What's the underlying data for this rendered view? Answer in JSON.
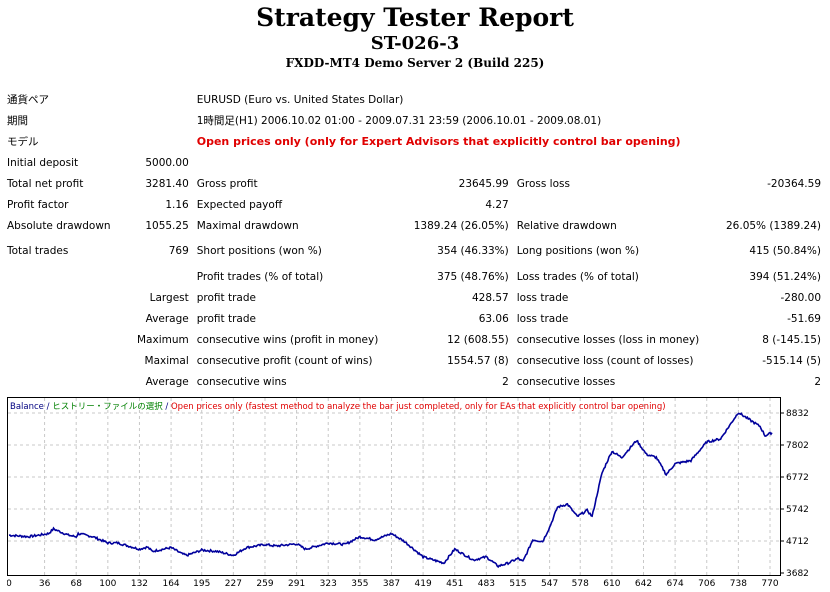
{
  "header": {
    "title": "Strategy Tester Report",
    "subtitle": "ST-026-3",
    "server": "FXDD-MT4 Demo Server 2 (Build 225)"
  },
  "info": [
    {
      "label": "通貨ペア",
      "value": "EURUSD (Euro vs. United States Dollar)"
    },
    {
      "label": "期間",
      "value": "1時間足(H1) 2006.10.02 01:00 - 2009.07.31 23:59 (2006.10.01 - 2009.08.01)"
    },
    {
      "label": "モデル",
      "value": "Open prices only (only for Expert Advisors that explicitly control bar opening)"
    }
  ],
  "stats": [
    [
      "Initial deposit",
      "5000.00",
      "",
      "",
      "",
      ""
    ],
    [
      "Total net profit",
      "3281.40",
      "Gross profit",
      "23645.99",
      "Gross loss",
      "-20364.59"
    ],
    [
      "Profit factor",
      "1.16",
      "Expected payoff",
      "4.27",
      "",
      ""
    ],
    [
      "Absolute drawdown",
      "1055.25",
      "Maximal drawdown",
      "1389.24 (26.05%)",
      "Relative drawdown",
      "26.05% (1389.24)"
    ],
    [
      "Total trades",
      "769",
      "Short positions (won %)",
      "354 (46.33%)",
      "Long positions (won %)",
      "415 (50.84%)"
    ],
    [
      "",
      "",
      "Profit trades (% of total)",
      "375 (48.76%)",
      "Loss trades (% of total)",
      "394 (51.24%)"
    ],
    [
      "",
      "Largest",
      "profit trade",
      "428.57",
      "loss trade",
      "-280.00"
    ],
    [
      "",
      "Average",
      "profit trade",
      "63.06",
      "loss trade",
      "-51.69"
    ],
    [
      "",
      "Maximum",
      "consecutive wins (profit in money)",
      "12 (608.55)",
      "consecutive losses (loss in money)",
      "8 (-145.15)"
    ],
    [
      "",
      "Maximal",
      "consecutive profit (count of wins)",
      "1554.57 (8)",
      "consecutive loss (count of losses)",
      "-515.14 (5)"
    ],
    [
      "",
      "Average",
      "consecutive wins",
      "2",
      "consecutive losses",
      "2"
    ]
  ],
  "chart_data": {
    "type": "line",
    "legend": {
      "balance": "Balance",
      "sep": " / ",
      "history": "ヒストリー・ファイルの選択",
      "model": "Open prices only (fastest method to analyze the bar just completed, only for EAs that explicitly control bar opening)"
    },
    "colors": {
      "line": "#00009c",
      "legend_balance": "#000080",
      "legend_history": "#008000",
      "legend_model": "#e00000",
      "grid": "#c8c8c8"
    },
    "xticks": [
      0,
      36,
      68,
      100,
      132,
      164,
      195,
      227,
      259,
      291,
      323,
      355,
      387,
      419,
      451,
      483,
      515,
      547,
      578,
      610,
      642,
      674,
      706,
      738,
      770
    ],
    "yticks": [
      3682,
      4712,
      5742,
      6772,
      7802,
      8832
    ],
    "xlim": [
      0,
      780
    ],
    "ylim": [
      3600,
      9300
    ],
    "series": [
      {
        "name": "Balance",
        "x": [
          0,
          20,
          40,
          45,
          60,
          68,
          70,
          85,
          100,
          110,
          132,
          140,
          145,
          164,
          175,
          180,
          195,
          210,
          227,
          240,
          259,
          270,
          291,
          300,
          323,
          340,
          355,
          370,
          387,
          400,
          419,
          440,
          451,
          470,
          483,
          495,
          505,
          515,
          520,
          530,
          540,
          547,
          555,
          565,
          575,
          585,
          590,
          600,
          610,
          620,
          635,
          645,
          655,
          665,
          674,
          690,
          706,
          720,
          738,
          750,
          760,
          765,
          772
        ],
        "y": [
          4900,
          4850,
          4950,
          5100,
          4900,
          4850,
          4950,
          4850,
          4650,
          4650,
          4450,
          4520,
          4380,
          4500,
          4300,
          4250,
          4420,
          4380,
          4250,
          4500,
          4600,
          4550,
          4620,
          4450,
          4650,
          4600,
          4850,
          4750,
          4950,
          4700,
          4200,
          4000,
          4450,
          4100,
          4200,
          3900,
          4000,
          4150,
          4050,
          4750,
          4700,
          5150,
          5800,
          5900,
          5500,
          5700,
          5500,
          6900,
          7600,
          7400,
          7950,
          7500,
          7400,
          6850,
          7200,
          7300,
          7900,
          8000,
          8850,
          8600,
          8400,
          8100,
          8200
        ]
      }
    ]
  }
}
